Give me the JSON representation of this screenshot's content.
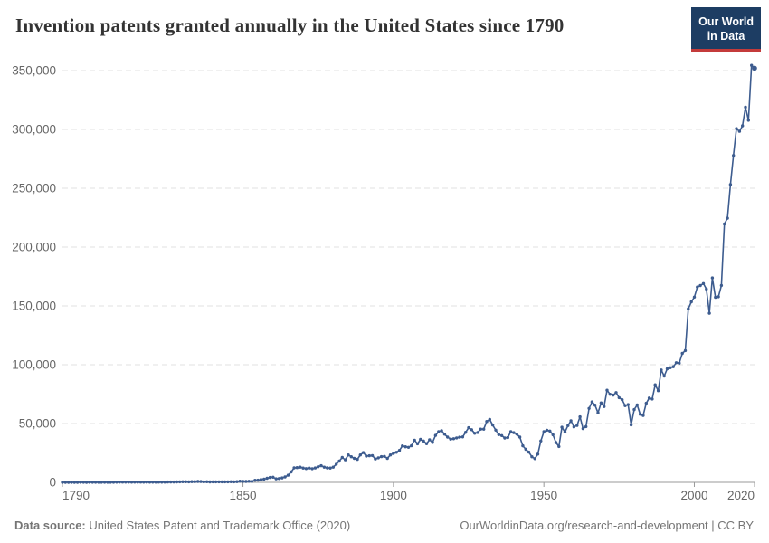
{
  "header": {
    "title": "Invention patents granted annually in the United States since 1790",
    "logo_line1": "Our World",
    "logo_line2": "in Data"
  },
  "footer": {
    "source_label": "Data source:",
    "source_text": " United States Patent and Trademark Office (2020)",
    "link_text": "OurWorldinData.org/research-and-development | CC BY"
  },
  "colors": {
    "line": "#3d5c8f",
    "grid": "#e0e0e0",
    "axis": "#9a9a9a",
    "tick_text": "#666666",
    "title_text": "#333333",
    "footer_text": "#757575",
    "logo_bg": "#1d3d63",
    "logo_red": "#c43b3b"
  },
  "chart_data": {
    "type": "line",
    "title": "Invention patents granted annually in the United States since 1790",
    "xlabel": "",
    "ylabel": "",
    "xlim": [
      1790,
      2020
    ],
    "ylim": [
      0,
      350000
    ],
    "x_ticks": [
      1790,
      1850,
      1900,
      1950,
      2000,
      2020
    ],
    "y_ticks": [
      0,
      50000,
      100000,
      150000,
      200000,
      250000,
      300000,
      350000
    ],
    "grid": "horizontal-dashed",
    "legend": "none",
    "markers": true,
    "x_start_year": 1790,
    "values": [
      3,
      33,
      11,
      20,
      22,
      12,
      44,
      51,
      28,
      44,
      41,
      44,
      65,
      97,
      84,
      57,
      63,
      99,
      158,
      203,
      223,
      215,
      238,
      181,
      210,
      173,
      206,
      174,
      222,
      156,
      155,
      168,
      200,
      173,
      228,
      304,
      323,
      331,
      368,
      447,
      544,
      573,
      474,
      586,
      630,
      752,
      702,
      426,
      514,
      404,
      458,
      490,
      488,
      493,
      478,
      473,
      566,
      495,
      583,
      984,
      883,
      752,
      885,
      844,
      1755,
      1881,
      2302,
      2674,
      3455,
      4160,
      4357,
      3020,
      3214,
      3773,
      4630,
      6088,
      8863,
      12277,
      12526,
      12931,
      12137,
      11659,
      12180,
      11616,
      12230,
      13291,
      14169,
      12920,
      12345,
      12165,
      12903,
      15500,
      18091,
      21162,
      19118,
      23285,
      21767,
      20403,
      19551,
      23324,
      25313,
      22312,
      22647,
      22750,
      19855,
      20856,
      21822,
      22067,
      20377,
      23278,
      24644,
      25546,
      27119,
      31029,
      30258,
      29775,
      31170,
      35859,
      32735,
      36561,
      35141,
      32856,
      36198,
      33917,
      39892,
      43118,
      43892,
      40935,
      38452,
      36797,
      37060,
      37798,
      38369,
      38616,
      42574,
      46432,
      44733,
      41717,
      42357,
      45267,
      45226,
      51756,
      53458,
      48774,
      44420,
      40618,
      39782,
      37683,
      38061,
      43073,
      42238,
      41109,
      38449,
      31054,
      28053,
      25695,
      21803,
      20191,
      23963,
      35131,
      43040,
      44326,
      43616,
      40468,
      33809,
      30432,
      46817,
      42744,
      48330,
      52408,
      47170,
      48368,
      55691,
      45679,
      47376,
      62857,
      68406,
      65652,
      59104,
      67559,
      64427,
      78317,
      74810,
      74143,
      76278,
      71994,
      70226,
      65269,
      66102,
      48854,
      61819,
      65770,
      57888,
      56860,
      67200,
      71661,
      70860,
      82952,
      77924,
      95537,
      90365,
      96511,
      97444,
      98342,
      101676,
      101419,
      109645,
      111983,
      147520,
      153487,
      157494,
      166035,
      167331,
      169023,
      164290,
      143806,
      173772,
      157282,
      157772,
      167349,
      219614,
      224505,
      253155,
      277835,
      300678,
      298407,
      303049,
      318829,
      307759,
      354430,
      351993
    ]
  }
}
